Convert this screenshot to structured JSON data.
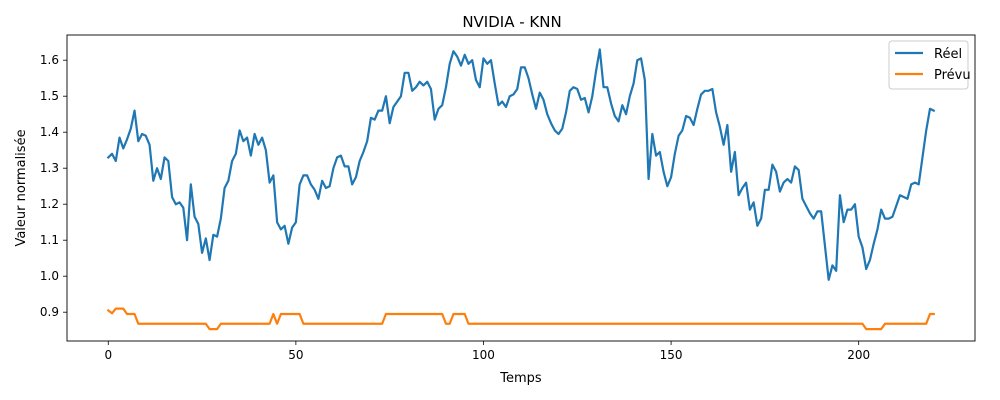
{
  "chart_data": {
    "type": "line",
    "title": "NVIDIA - KNN",
    "xlabel": "Temps",
    "ylabel": "Valeur normalisée",
    "xlim": [
      -11,
      231
    ],
    "ylim": [
      0.82,
      1.67
    ],
    "x_ticks": [
      0,
      50,
      100,
      150,
      200
    ],
    "y_ticks": [
      0.9,
      1.0,
      1.1,
      1.2,
      1.3,
      1.4,
      1.5,
      1.6
    ],
    "x_tick_labels": [
      "0",
      "50",
      "100",
      "150",
      "200"
    ],
    "y_tick_labels": [
      "0.9",
      "1.0",
      "1.1",
      "1.2",
      "1.3",
      "1.4",
      "1.5",
      "1.6"
    ],
    "grid": false,
    "legend_position": "top-right",
    "series": [
      {
        "name": "Réel",
        "color": "#1f77b4",
        "points": [
          [
            0,
            1.33
          ],
          [
            1,
            1.34
          ],
          [
            2,
            1.32
          ],
          [
            3,
            1.385
          ],
          [
            4,
            1.355
          ],
          [
            5,
            1.38
          ],
          [
            6,
            1.41
          ],
          [
            7,
            1.46
          ],
          [
            8,
            1.375
          ],
          [
            9,
            1.395
          ],
          [
            10,
            1.39
          ],
          [
            11,
            1.365
          ],
          [
            12,
            1.265
          ],
          [
            13,
            1.3
          ],
          [
            14,
            1.27
          ],
          [
            15,
            1.33
          ],
          [
            16,
            1.32
          ],
          [
            17,
            1.22
          ],
          [
            18,
            1.2
          ],
          [
            19,
            1.205
          ],
          [
            20,
            1.19
          ],
          [
            21,
            1.1
          ],
          [
            22,
            1.255
          ],
          [
            23,
            1.165
          ],
          [
            24,
            1.145
          ],
          [
            25,
            1.065
          ],
          [
            26,
            1.105
          ],
          [
            27,
            1.045
          ],
          [
            28,
            1.115
          ],
          [
            29,
            1.11
          ],
          [
            30,
            1.16
          ],
          [
            31,
            1.245
          ],
          [
            32,
            1.265
          ],
          [
            33,
            1.32
          ],
          [
            34,
            1.34
          ],
          [
            35,
            1.405
          ],
          [
            36,
            1.375
          ],
          [
            37,
            1.385
          ],
          [
            38,
            1.335
          ],
          [
            39,
            1.395
          ],
          [
            40,
            1.365
          ],
          [
            41,
            1.385
          ],
          [
            42,
            1.35
          ],
          [
            43,
            1.26
          ],
          [
            44,
            1.28
          ],
          [
            45,
            1.15
          ],
          [
            46,
            1.13
          ],
          [
            47,
            1.14
          ],
          [
            48,
            1.09
          ],
          [
            49,
            1.135
          ],
          [
            50,
            1.15
          ],
          [
            51,
            1.255
          ],
          [
            52,
            1.28
          ],
          [
            53,
            1.28
          ],
          [
            54,
            1.255
          ],
          [
            55,
            1.24
          ],
          [
            56,
            1.215
          ],
          [
            57,
            1.265
          ],
          [
            58,
            1.245
          ],
          [
            59,
            1.25
          ],
          [
            60,
            1.3
          ],
          [
            61,
            1.33
          ],
          [
            62,
            1.335
          ],
          [
            63,
            1.305
          ],
          [
            64,
            1.305
          ],
          [
            65,
            1.255
          ],
          [
            66,
            1.275
          ],
          [
            67,
            1.32
          ],
          [
            68,
            1.345
          ],
          [
            69,
            1.375
          ],
          [
            70,
            1.44
          ],
          [
            71,
            1.435
          ],
          [
            72,
            1.46
          ],
          [
            73,
            1.46
          ],
          [
            74,
            1.5
          ],
          [
            75,
            1.425
          ],
          [
            76,
            1.47
          ],
          [
            77,
            1.485
          ],
          [
            78,
            1.5
          ],
          [
            79,
            1.565
          ],
          [
            80,
            1.565
          ],
          [
            81,
            1.515
          ],
          [
            82,
            1.525
          ],
          [
            83,
            1.54
          ],
          [
            84,
            1.53
          ],
          [
            85,
            1.54
          ],
          [
            86,
            1.52
          ],
          [
            87,
            1.435
          ],
          [
            88,
            1.465
          ],
          [
            89,
            1.475
          ],
          [
            90,
            1.525
          ],
          [
            91,
            1.59
          ],
          [
            92,
            1.625
          ],
          [
            93,
            1.61
          ],
          [
            94,
            1.585
          ],
          [
            95,
            1.615
          ],
          [
            96,
            1.59
          ],
          [
            97,
            1.6
          ],
          [
            98,
            1.545
          ],
          [
            99,
            1.525
          ],
          [
            100,
            1.605
          ],
          [
            101,
            1.59
          ],
          [
            102,
            1.6
          ],
          [
            103,
            1.535
          ],
          [
            104,
            1.475
          ],
          [
            105,
            1.485
          ],
          [
            106,
            1.47
          ],
          [
            107,
            1.5
          ],
          [
            108,
            1.505
          ],
          [
            109,
            1.52
          ],
          [
            110,
            1.58
          ],
          [
            111,
            1.58
          ],
          [
            112,
            1.55
          ],
          [
            113,
            1.505
          ],
          [
            114,
            1.465
          ],
          [
            115,
            1.51
          ],
          [
            116,
            1.49
          ],
          [
            117,
            1.45
          ],
          [
            118,
            1.425
          ],
          [
            119,
            1.405
          ],
          [
            120,
            1.395
          ],
          [
            121,
            1.41
          ],
          [
            122,
            1.455
          ],
          [
            123,
            1.515
          ],
          [
            124,
            1.525
          ],
          [
            125,
            1.52
          ],
          [
            126,
            1.49
          ],
          [
            127,
            1.495
          ],
          [
            128,
            1.455
          ],
          [
            129,
            1.5
          ],
          [
            130,
            1.57
          ],
          [
            131,
            1.63
          ],
          [
            132,
            1.525
          ],
          [
            133,
            1.525
          ],
          [
            134,
            1.48
          ],
          [
            135,
            1.445
          ],
          [
            136,
            1.43
          ],
          [
            137,
            1.475
          ],
          [
            138,
            1.45
          ],
          [
            139,
            1.5
          ],
          [
            140,
            1.535
          ],
          [
            141,
            1.6
          ],
          [
            142,
            1.605
          ],
          [
            143,
            1.545
          ],
          [
            144,
            1.27
          ],
          [
            145,
            1.395
          ],
          [
            146,
            1.335
          ],
          [
            147,
            1.345
          ],
          [
            148,
            1.29
          ],
          [
            149,
            1.25
          ],
          [
            150,
            1.275
          ],
          [
            151,
            1.34
          ],
          [
            152,
            1.39
          ],
          [
            153,
            1.405
          ],
          [
            154,
            1.445
          ],
          [
            155,
            1.44
          ],
          [
            156,
            1.42
          ],
          [
            157,
            1.465
          ],
          [
            158,
            1.505
          ],
          [
            159,
            1.515
          ],
          [
            160,
            1.515
          ],
          [
            161,
            1.52
          ],
          [
            162,
            1.455
          ],
          [
            163,
            1.415
          ],
          [
            164,
            1.365
          ],
          [
            165,
            1.42
          ],
          [
            166,
            1.29
          ],
          [
            167,
            1.345
          ],
          [
            168,
            1.225
          ],
          [
            169,
            1.245
          ],
          [
            170,
            1.26
          ],
          [
            171,
            1.185
          ],
          [
            172,
            1.205
          ],
          [
            173,
            1.14
          ],
          [
            174,
            1.16
          ],
          [
            175,
            1.24
          ],
          [
            176,
            1.24
          ],
          [
            177,
            1.31
          ],
          [
            178,
            1.29
          ],
          [
            179,
            1.235
          ],
          [
            180,
            1.26
          ],
          [
            181,
            1.27
          ],
          [
            182,
            1.26
          ],
          [
            183,
            1.305
          ],
          [
            184,
            1.295
          ],
          [
            185,
            1.215
          ],
          [
            186,
            1.195
          ],
          [
            187,
            1.175
          ],
          [
            188,
            1.16
          ],
          [
            189,
            1.18
          ],
          [
            190,
            1.18
          ],
          [
            191,
            1.085
          ],
          [
            192,
            0.99
          ],
          [
            193,
            1.03
          ],
          [
            194,
            1.015
          ],
          [
            195,
            1.225
          ],
          [
            196,
            1.15
          ],
          [
            197,
            1.185
          ],
          [
            198,
            1.185
          ],
          [
            199,
            1.2
          ],
          [
            200,
            1.11
          ],
          [
            201,
            1.08
          ],
          [
            202,
            1.02
          ],
          [
            203,
            1.045
          ],
          [
            204,
            1.09
          ],
          [
            205,
            1.13
          ],
          [
            206,
            1.185
          ],
          [
            207,
            1.16
          ],
          [
            208,
            1.16
          ],
          [
            209,
            1.165
          ],
          [
            210,
            1.195
          ],
          [
            211,
            1.225
          ],
          [
            212,
            1.22
          ],
          [
            213,
            1.215
          ],
          [
            214,
            1.255
          ],
          [
            215,
            1.26
          ],
          [
            216,
            1.255
          ],
          [
            217,
            1.33
          ],
          [
            218,
            1.405
          ],
          [
            219,
            1.465
          ],
          [
            220,
            1.46
          ]
        ]
      },
      {
        "name": "Prévu",
        "color": "#ff7f0e",
        "points": [
          [
            0,
            0.905
          ],
          [
            1,
            0.897
          ],
          [
            2,
            0.91
          ],
          [
            3,
            0.91
          ],
          [
            4,
            0.91
          ],
          [
            5,
            0.895
          ],
          [
            6,
            0.895
          ],
          [
            7,
            0.895
          ],
          [
            8,
            0.868
          ],
          [
            9,
            0.868
          ],
          [
            25,
            0.868
          ],
          [
            26,
            0.868
          ],
          [
            27,
            0.853
          ],
          [
            28,
            0.853
          ],
          [
            29,
            0.853
          ],
          [
            30,
            0.868
          ],
          [
            31,
            0.868
          ],
          [
            43,
            0.868
          ],
          [
            44,
            0.895
          ],
          [
            45,
            0.868
          ],
          [
            46,
            0.895
          ],
          [
            47,
            0.895
          ],
          [
            51,
            0.895
          ],
          [
            52,
            0.868
          ],
          [
            53,
            0.868
          ],
          [
            73,
            0.868
          ],
          [
            74,
            0.895
          ],
          [
            75,
            0.895
          ],
          [
            89,
            0.895
          ],
          [
            90,
            0.868
          ],
          [
            91,
            0.868
          ],
          [
            92,
            0.895
          ],
          [
            93,
            0.895
          ],
          [
            95,
            0.895
          ],
          [
            96,
            0.868
          ],
          [
            97,
            0.868
          ],
          [
            200,
            0.868
          ],
          [
            201,
            0.868
          ],
          [
            202,
            0.853
          ],
          [
            203,
            0.853
          ],
          [
            206,
            0.853
          ],
          [
            207,
            0.868
          ],
          [
            208,
            0.868
          ],
          [
            218,
            0.868
          ],
          [
            219,
            0.895
          ],
          [
            220,
            0.895
          ]
        ]
      }
    ]
  }
}
